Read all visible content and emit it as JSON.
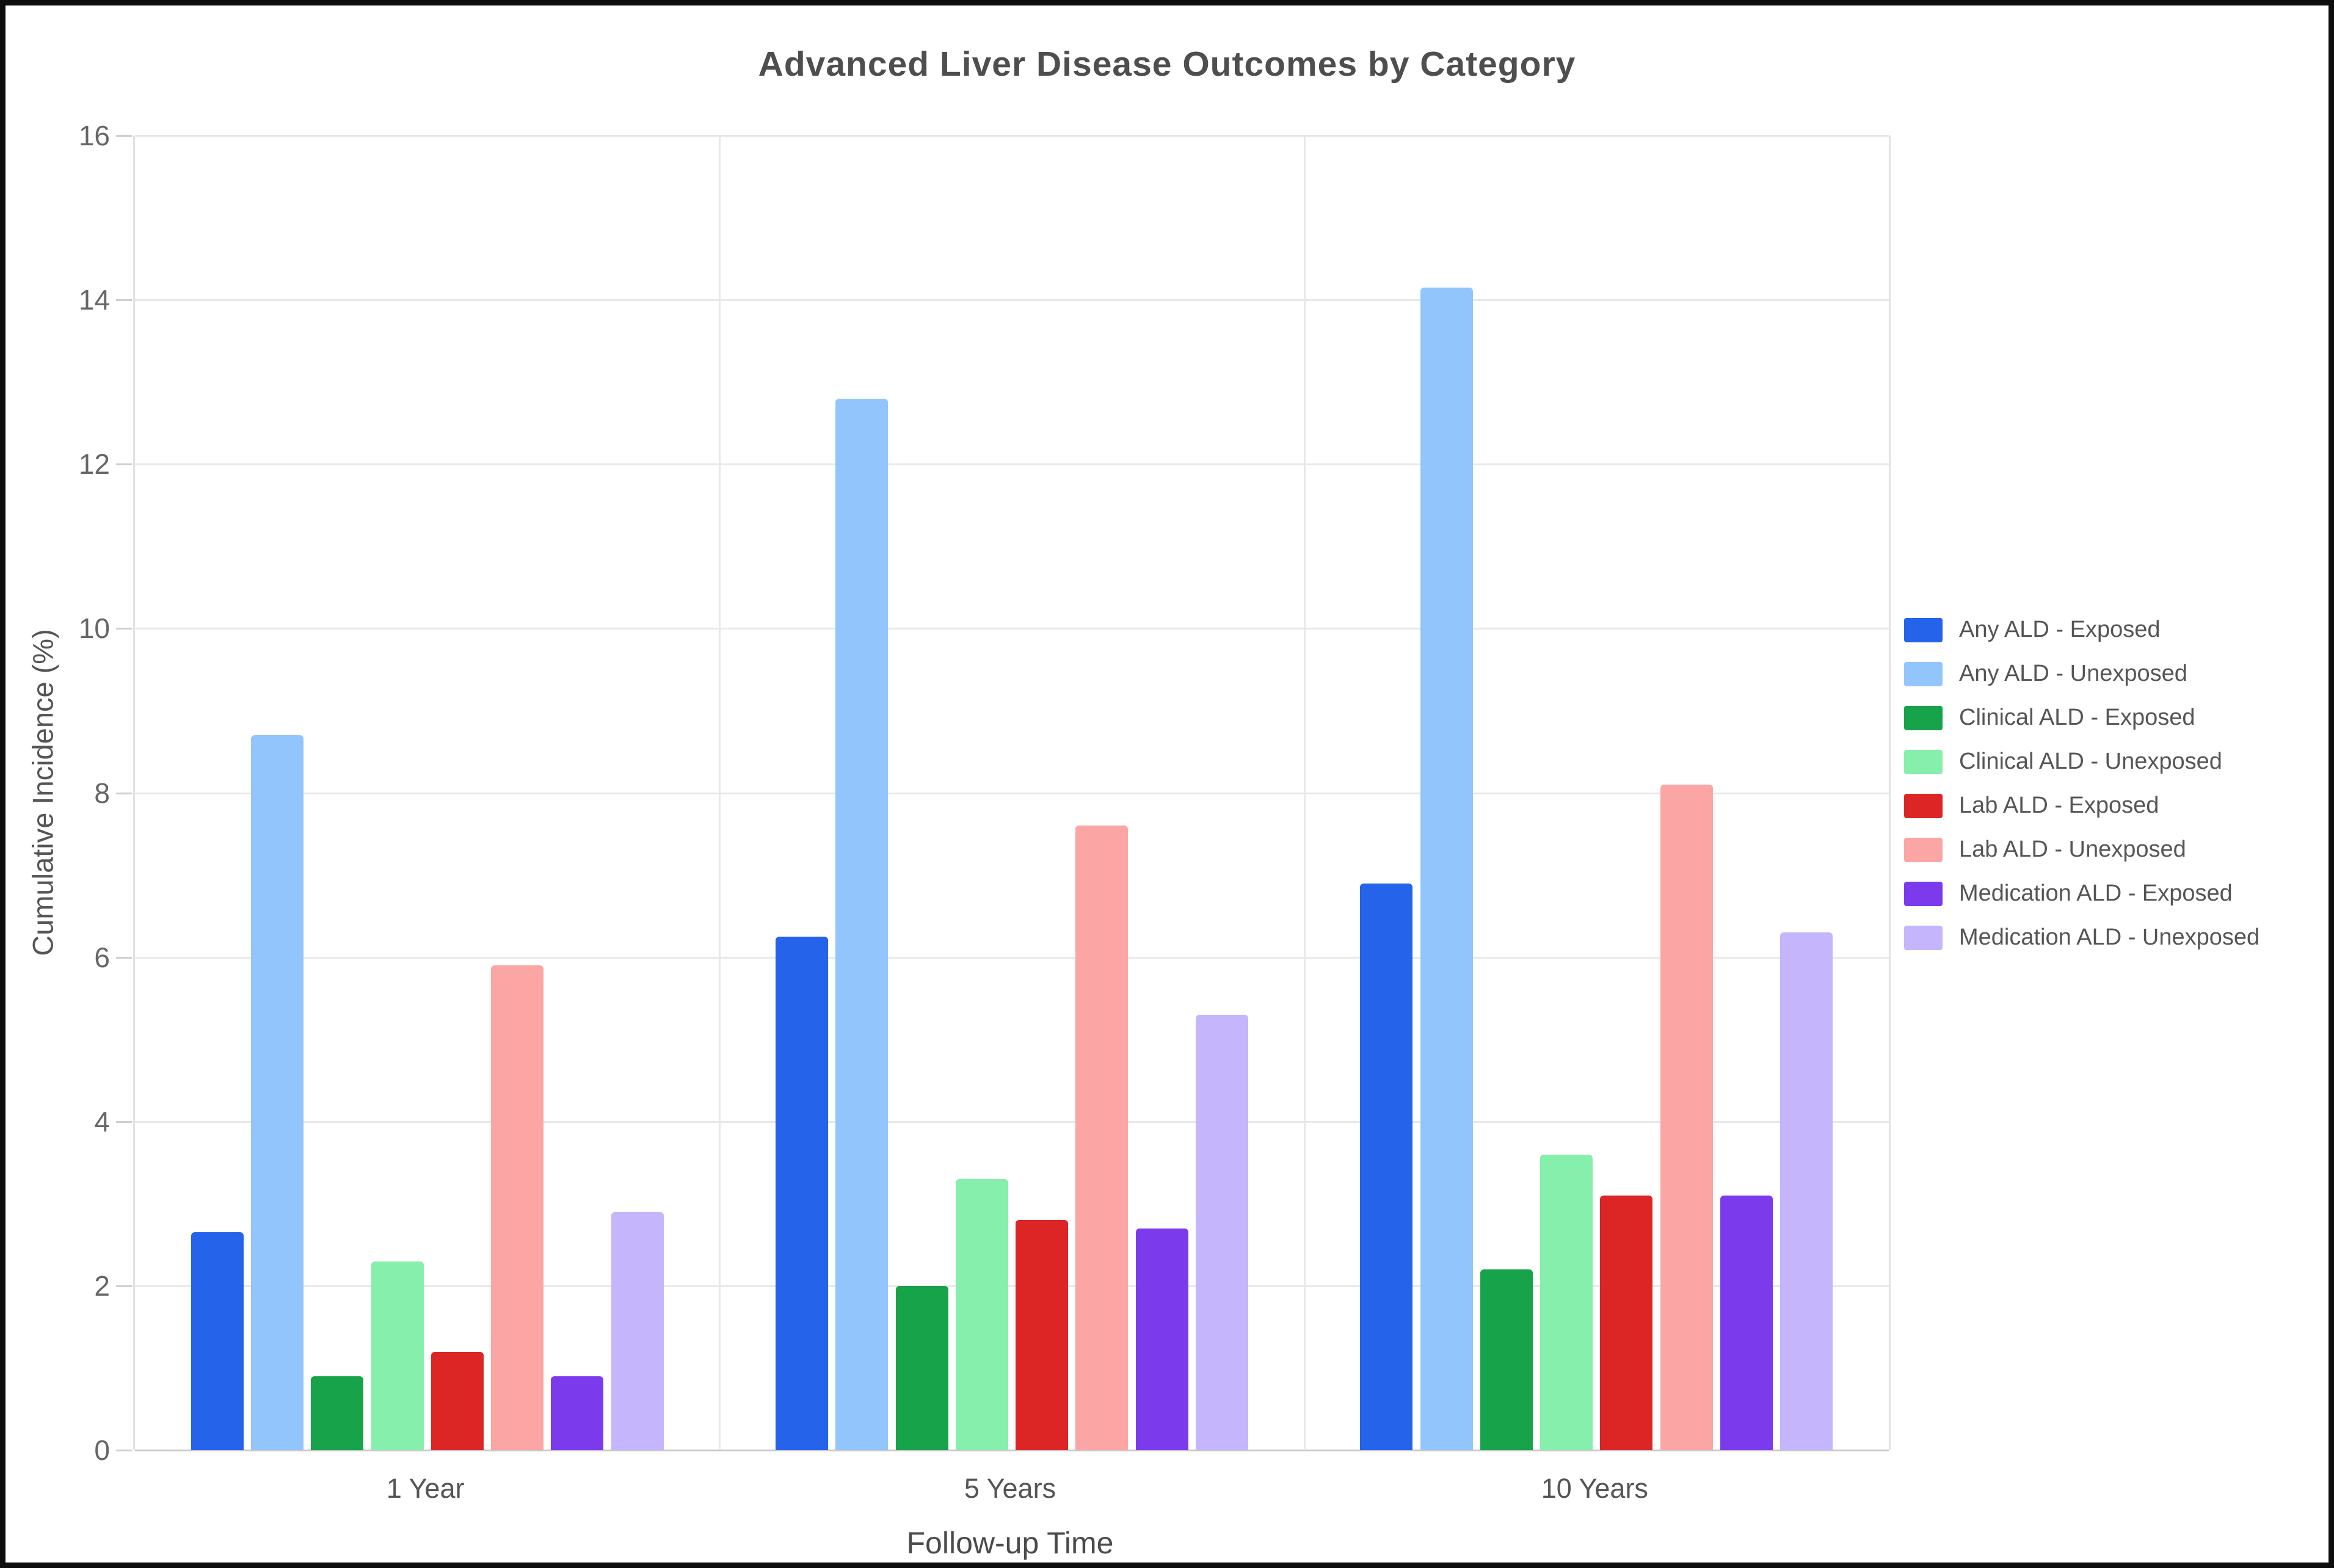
{
  "title": "Advanced Liver Disease Outcomes by Category",
  "chart_data": {
    "type": "bar",
    "title": "Advanced Liver Disease Outcomes by Category",
    "xlabel": "Follow-up Time",
    "ylabel": "Cumulative Incidence (%)",
    "ylim": [
      0,
      16
    ],
    "y_tick_step": 2,
    "y_tick_labels": [
      "0",
      "2",
      "4",
      "6",
      "8",
      "10",
      "12",
      "14",
      "16"
    ],
    "grid": true,
    "legend_position": "right",
    "categories": [
      "1 Year",
      "5 Years",
      "10 Years"
    ],
    "series": [
      {
        "name": "Any ALD - Exposed",
        "color": "#2563eb",
        "values": [
          2.65,
          6.25,
          6.9
        ]
      },
      {
        "name": "Any ALD - Unexposed",
        "color": "#93c5fd",
        "values": [
          8.7,
          12.8,
          14.15
        ]
      },
      {
        "name": "Clinical ALD - Exposed",
        "color": "#16a34a",
        "values": [
          0.9,
          2.0,
          2.2
        ]
      },
      {
        "name": "Clinical ALD - Unexposed",
        "color": "#86efac",
        "values": [
          2.3,
          3.3,
          3.6
        ]
      },
      {
        "name": "Lab ALD - Exposed",
        "color": "#dc2626",
        "values": [
          1.2,
          2.8,
          3.1
        ]
      },
      {
        "name": "Lab ALD - Unexposed",
        "color": "#fca5a5",
        "values": [
          5.9,
          7.6,
          8.1
        ]
      },
      {
        "name": "Medication ALD - Exposed",
        "color": "#7c3aed",
        "values": [
          0.9,
          2.7,
          3.1
        ]
      },
      {
        "name": "Medication ALD - Unexposed",
        "color": "#c4b5fd",
        "values": [
          2.9,
          5.3,
          6.3
        ]
      }
    ]
  },
  "colors": {
    "title_text": "#4e4e4e",
    "axis_text": "#555555",
    "tick_text": "#666666",
    "gridline": "#e8e8e8",
    "baseline": "#c9c9c9",
    "frame_border": "#0d0d0d"
  }
}
